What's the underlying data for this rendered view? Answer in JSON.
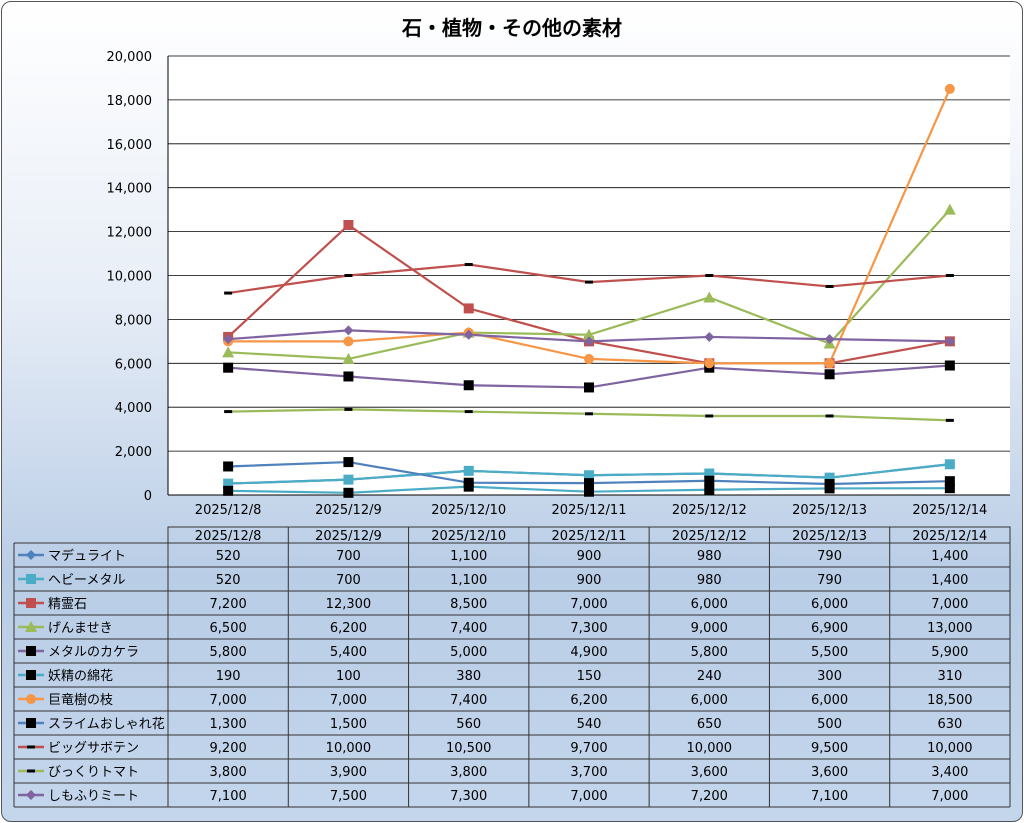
{
  "chart_data": {
    "type": "line",
    "title": "石・植物・その他の素材",
    "xlabel": "",
    "ylabel": "",
    "ylim": [
      0,
      20000
    ],
    "yticks": [
      "0",
      "2,000",
      "4,000",
      "6,000",
      "8,000",
      "10,000",
      "12,000",
      "14,000",
      "16,000",
      "18,000",
      "20,000"
    ],
    "ytick_values": [
      0,
      2000,
      4000,
      6000,
      8000,
      10000,
      12000,
      14000,
      16000,
      18000,
      20000
    ],
    "grid": true,
    "legend": "data-table",
    "categories": [
      "2025/12/8",
      "2025/12/9",
      "2025/12/10",
      "2025/12/11",
      "2025/12/12",
      "2025/12/13",
      "2025/12/14"
    ],
    "series": [
      {
        "name": "マデュライト",
        "color": "#4F81BD",
        "marker": "diamond",
        "values": [
          520,
          700,
          1100,
          900,
          980,
          790,
          1400
        ],
        "labels": [
          "520",
          "700",
          "1,100",
          "900",
          "980",
          "790",
          "1,400"
        ]
      },
      {
        "name": "ヘビーメタル",
        "color": "#4BACC6",
        "marker": "square",
        "values": [
          520,
          700,
          1100,
          900,
          980,
          790,
          1400
        ],
        "labels": [
          "520",
          "700",
          "1,100",
          "900",
          "980",
          "790",
          "1,400"
        ]
      },
      {
        "name": "精霊石",
        "color": "#C0504D",
        "marker": "square",
        "values": [
          7200,
          12300,
          8500,
          7000,
          6000,
          6000,
          7000
        ],
        "labels": [
          "7,200",
          "12,300",
          "8,500",
          "7,000",
          "6,000",
          "6,000",
          "7,000"
        ]
      },
      {
        "name": "げんませき",
        "color": "#9BBB59",
        "marker": "triangle",
        "values": [
          6500,
          6200,
          7400,
          7300,
          9000,
          6900,
          13000
        ],
        "labels": [
          "6,500",
          "6,200",
          "7,400",
          "7,300",
          "9,000",
          "6,900",
          "13,000"
        ]
      },
      {
        "name": "メタルのカケラ",
        "color": "#8064A2",
        "marker": "blacksquare",
        "values": [
          5800,
          5400,
          5000,
          4900,
          5800,
          5500,
          5900
        ],
        "labels": [
          "5,800",
          "5,400",
          "5,000",
          "4,900",
          "5,800",
          "5,500",
          "5,900"
        ]
      },
      {
        "name": "妖精の綿花",
        "color": "#4BACC6",
        "marker": "blacksquare",
        "values": [
          190,
          100,
          380,
          150,
          240,
          300,
          310
        ],
        "labels": [
          "190",
          "100",
          "380",
          "150",
          "240",
          "300",
          "310"
        ]
      },
      {
        "name": "巨竜樹の枝",
        "color": "#F79646",
        "marker": "circle",
        "values": [
          7000,
          7000,
          7400,
          6200,
          6000,
          6000,
          18500
        ],
        "labels": [
          "7,000",
          "7,000",
          "7,400",
          "6,200",
          "6,000",
          "6,000",
          "18,500"
        ]
      },
      {
        "name": "スライムおしゃれ花",
        "color": "#4F81BD",
        "marker": "blacksquare",
        "values": [
          1300,
          1500,
          560,
          540,
          650,
          500,
          630
        ],
        "labels": [
          "1,300",
          "1,500",
          "560",
          "540",
          "650",
          "500",
          "630"
        ]
      },
      {
        "name": "ビッグサボテン",
        "color": "#C0504D",
        "marker": "dash",
        "values": [
          9200,
          10000,
          10500,
          9700,
          10000,
          9500,
          10000
        ],
        "labels": [
          "9,200",
          "10,000",
          "10,500",
          "9,700",
          "10,000",
          "9,500",
          "10,000"
        ]
      },
      {
        "name": "びっくりトマト",
        "color": "#9BBB59",
        "marker": "dash",
        "values": [
          3800,
          3900,
          3800,
          3700,
          3600,
          3600,
          3400
        ],
        "labels": [
          "3,800",
          "3,900",
          "3,800",
          "3,700",
          "3,600",
          "3,600",
          "3,400"
        ]
      },
      {
        "name": "しもふりミート",
        "color": "#8064A2",
        "marker": "diamond",
        "values": [
          7100,
          7500,
          7300,
          7000,
          7200,
          7100,
          7000
        ],
        "labels": [
          "7,100",
          "7,500",
          "7,300",
          "7,000",
          "7,200",
          "7,100",
          "7,000"
        ]
      }
    ]
  }
}
